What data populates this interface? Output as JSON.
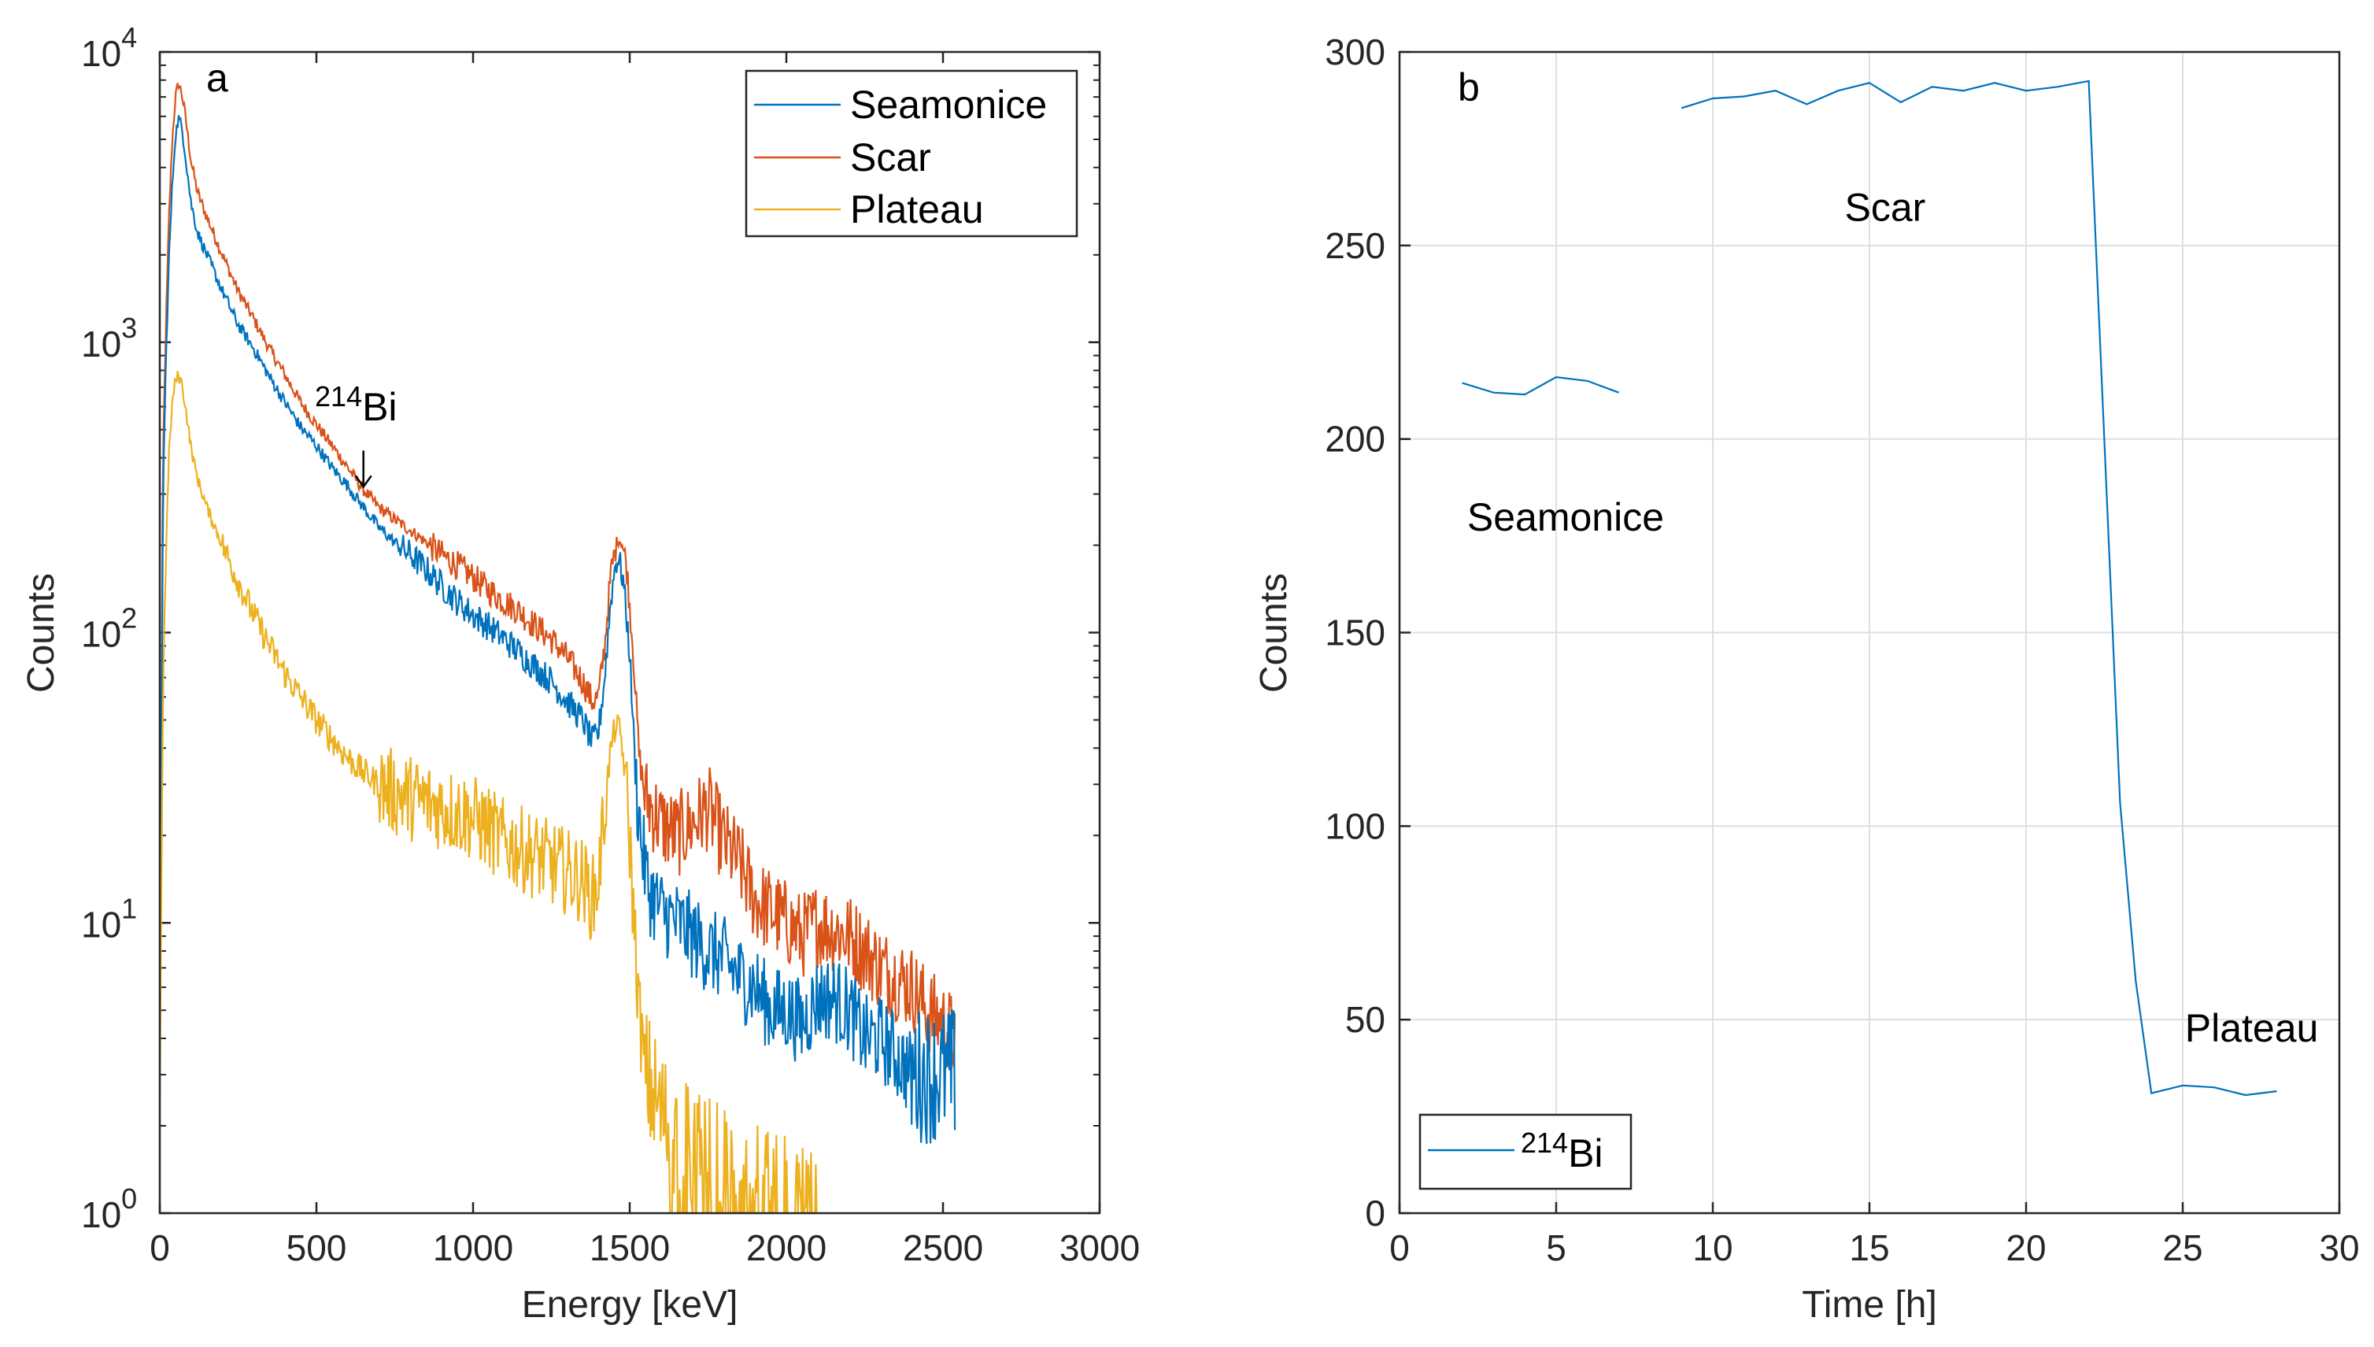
{
  "chart_data": [
    {
      "type": "line",
      "panel_label": "a",
      "xlabel": "Energy [keV]",
      "ylabel": "Counts",
      "xlim": [
        0,
        3000
      ],
      "ylim": [
        1,
        10000
      ],
      "yscale": "log",
      "grid": false,
      "legend_position": "top-right",
      "x_ticks": [
        0,
        500,
        1000,
        1500,
        2000,
        2500,
        3000
      ],
      "x_tick_labels": [
        "0",
        "500",
        "1000",
        "1500",
        "2000",
        "2500",
        "3000"
      ],
      "y_ticks": [
        1,
        10,
        100,
        1000,
        10000
      ],
      "y_tick_labels": [
        {
          "base": "10",
          "exp": "0"
        },
        {
          "base": "10",
          "exp": "1"
        },
        {
          "base": "10",
          "exp": "2"
        },
        {
          "base": "10",
          "exp": "3"
        },
        {
          "base": "10",
          "exp": "4"
        }
      ],
      "series": [
        {
          "name": "Seamonice",
          "color": "#0072BD",
          "points": [
            [
              0,
              3
            ],
            [
              10,
              300
            ],
            [
              20,
              900
            ],
            [
              30,
              2000
            ],
            [
              40,
              3500
            ],
            [
              50,
              5200
            ],
            [
              60,
              5900
            ],
            [
              70,
              5500
            ],
            [
              80,
              4600
            ],
            [
              90,
              3700
            ],
            [
              100,
              3000
            ],
            [
              120,
              2400
            ],
            [
              150,
              2000
            ],
            [
              200,
              1500
            ],
            [
              250,
              1150
            ],
            [
              300,
              950
            ],
            [
              350,
              760
            ],
            [
              400,
              620
            ],
            [
              450,
              510
            ],
            [
              500,
              440
            ],
            [
              550,
              370
            ],
            [
              600,
              320
            ],
            [
              650,
              270
            ],
            [
              700,
              230
            ],
            [
              750,
              205
            ],
            [
              800,
              185
            ],
            [
              850,
              165
            ],
            [
              900,
              145
            ],
            [
              950,
              128
            ],
            [
              1000,
              115
            ],
            [
              1050,
              105
            ],
            [
              1100,
              95
            ],
            [
              1150,
              85
            ],
            [
              1200,
              76
            ],
            [
              1250,
              68
            ],
            [
              1300,
              58
            ],
            [
              1350,
              50
            ],
            [
              1380,
              42
            ],
            [
              1400,
              45
            ],
            [
              1420,
              70
            ],
            [
              1440,
              130
            ],
            [
              1455,
              175
            ],
            [
              1465,
              180
            ],
            [
              1480,
              150
            ],
            [
              1500,
              85
            ],
            [
              1520,
              30
            ],
            [
              1540,
              18
            ],
            [
              1560,
              13
            ],
            [
              1600,
              11
            ],
            [
              1650,
              10
            ],
            [
              1700,
              9
            ],
            [
              1750,
              8
            ],
            [
              1800,
              7.5
            ],
            [
              1850,
              6.5
            ],
            [
              1900,
              6
            ],
            [
              1950,
              5
            ],
            [
              2000,
              5
            ],
            [
              2050,
              4.5
            ],
            [
              2100,
              5.5
            ],
            [
              2150,
              5.5
            ],
            [
              2200,
              5
            ],
            [
              2250,
              4
            ],
            [
              2300,
              4
            ],
            [
              2350,
              3.5
            ],
            [
              2400,
              3
            ],
            [
              2450,
              3
            ],
            [
              2500,
              3
            ],
            [
              2540,
              3
            ]
          ]
        },
        {
          "name": "Scar",
          "color": "#D95319",
          "points": [
            [
              0,
              4
            ],
            [
              10,
              400
            ],
            [
              20,
              1200
            ],
            [
              30,
              2800
            ],
            [
              40,
              5000
            ],
            [
              50,
              7000
            ],
            [
              60,
              7800
            ],
            [
              70,
              7200
            ],
            [
              80,
              6200
            ],
            [
              90,
              5100
            ],
            [
              100,
              4200
            ],
            [
              120,
              3300
            ],
            [
              150,
              2700
            ],
            [
              200,
              2000
            ],
            [
              250,
              1500
            ],
            [
              300,
              1200
            ],
            [
              350,
              950
            ],
            [
              400,
              770
            ],
            [
              450,
              620
            ],
            [
              500,
              520
            ],
            [
              550,
              440
            ],
            [
              600,
              370
            ],
            [
              650,
              310
            ],
            [
              700,
              270
            ],
            [
              750,
              245
            ],
            [
              800,
              225
            ],
            [
              850,
              205
            ],
            [
              900,
              185
            ],
            [
              950,
              170
            ],
            [
              1000,
              155
            ],
            [
              1050,
              140
            ],
            [
              1100,
              128
            ],
            [
              1150,
              118
            ],
            [
              1200,
              105
            ],
            [
              1250,
              95
            ],
            [
              1300,
              82
            ],
            [
              1350,
              68
            ],
            [
              1380,
              58
            ],
            [
              1400,
              60
            ],
            [
              1420,
              90
            ],
            [
              1440,
              160
            ],
            [
              1460,
              210
            ],
            [
              1475,
              205
            ],
            [
              1490,
              170
            ],
            [
              1510,
              90
            ],
            [
              1530,
              38
            ],
            [
              1550,
              27
            ],
            [
              1600,
              22
            ],
            [
              1650,
              20
            ],
            [
              1700,
              22
            ],
            [
              1750,
              25
            ],
            [
              1800,
              19
            ],
            [
              1850,
              16
            ],
            [
              1900,
              12
            ],
            [
              1950,
              11
            ],
            [
              2000,
              10
            ],
            [
              2050,
              9
            ],
            [
              2100,
              10
            ],
            [
              2150,
              9.5
            ],
            [
              2200,
              9
            ],
            [
              2250,
              8
            ],
            [
              2300,
              7
            ],
            [
              2350,
              6.5
            ],
            [
              2400,
              6
            ],
            [
              2450,
              5
            ],
            [
              2500,
              4.5
            ],
            [
              2540,
              4
            ]
          ]
        },
        {
          "name": "Plateau",
          "color": "#EDB120",
          "points": [
            [
              0,
              3
            ],
            [
              10,
              60
            ],
            [
              20,
              200
            ],
            [
              30,
              420
            ],
            [
              40,
              620
            ],
            [
              50,
              740
            ],
            [
              60,
              770
            ],
            [
              70,
              720
            ],
            [
              80,
              620
            ],
            [
              90,
              520
            ],
            [
              100,
              430
            ],
            [
              120,
              340
            ],
            [
              150,
              270
            ],
            [
              200,
              200
            ],
            [
              250,
              150
            ],
            [
              300,
              115
            ],
            [
              350,
              90
            ],
            [
              400,
              72
            ],
            [
              450,
              60
            ],
            [
              500,
              50
            ],
            [
              550,
              43
            ],
            [
              600,
              37
            ],
            [
              650,
              33
            ],
            [
              700,
              30
            ],
            [
              750,
              28
            ],
            [
              800,
              27
            ],
            [
              850,
              26
            ],
            [
              900,
              25
            ],
            [
              950,
              24
            ],
            [
              1000,
              23
            ],
            [
              1050,
              21
            ],
            [
              1100,
              19
            ],
            [
              1150,
              18
            ],
            [
              1200,
              17
            ],
            [
              1250,
              16
            ],
            [
              1300,
              15
            ],
            [
              1350,
              14
            ],
            [
              1380,
              12
            ],
            [
              1400,
              14
            ],
            [
              1420,
              25
            ],
            [
              1440,
              40
            ],
            [
              1455,
              48
            ],
            [
              1470,
              45
            ],
            [
              1490,
              30
            ],
            [
              1510,
              12
            ],
            [
              1530,
              5
            ],
            [
              1550,
              3
            ],
            [
              1600,
              2.2
            ],
            [
              1650,
              1.8
            ],
            [
              1700,
              1.6
            ],
            [
              1750,
              1.5
            ],
            [
              1800,
              1.4
            ],
            [
              1850,
              1.3
            ],
            [
              1900,
              1.2
            ],
            [
              1950,
              1.1
            ],
            [
              2000,
              1.1
            ],
            [
              2050,
              1.05
            ],
            [
              2100,
              1.05
            ]
          ]
        }
      ],
      "annotations": [
        {
          "text_base": "Bi",
          "text_sup": "214",
          "x": 650,
          "y": 310,
          "arrow": "down"
        }
      ]
    },
    {
      "type": "line",
      "panel_label": "b",
      "xlabel": "Time [h]",
      "ylabel": "Counts",
      "xlim": [
        0,
        30
      ],
      "ylim": [
        0,
        300
      ],
      "grid": true,
      "legend_position": "bottom-left",
      "x_ticks": [
        0,
        5,
        10,
        15,
        20,
        25,
        30
      ],
      "y_ticks": [
        0,
        50,
        100,
        150,
        200,
        250,
        300
      ],
      "series": [
        {
          "name_sup": "214",
          "name_base": "Bi",
          "color": "#0072BD",
          "segments": [
            [
              [
                2,
                214.5
              ],
              [
                3,
                212
              ],
              [
                4,
                211.5
              ],
              [
                5,
                216
              ],
              [
                6,
                215
              ],
              [
                7,
                212
              ]
            ],
            [
              [
                9,
                285.5
              ],
              [
                10,
                288
              ],
              [
                11,
                288.5
              ],
              [
                12,
                290
              ],
              [
                13,
                286.5
              ],
              [
                14,
                290
              ],
              [
                15,
                292
              ],
              [
                16,
                287
              ],
              [
                17,
                291
              ],
              [
                18,
                290
              ],
              [
                19,
                292
              ],
              [
                20,
                290
              ],
              [
                21,
                291
              ],
              [
                22,
                292.5
              ],
              [
                23,
                106
              ],
              [
                23.5,
                60
              ],
              [
                24,
                31
              ],
              [
                25,
                33
              ],
              [
                26,
                32.5
              ],
              [
                27,
                30.5
              ],
              [
                28,
                31.5
              ]
            ]
          ]
        }
      ],
      "annotations": [
        {
          "text": "Scar",
          "x": 15.5,
          "y": 260
        },
        {
          "text": "Seamonice",
          "x": 5.3,
          "y": 180
        },
        {
          "text": "Plateau",
          "x": 27.2,
          "y": 48
        }
      ]
    }
  ]
}
